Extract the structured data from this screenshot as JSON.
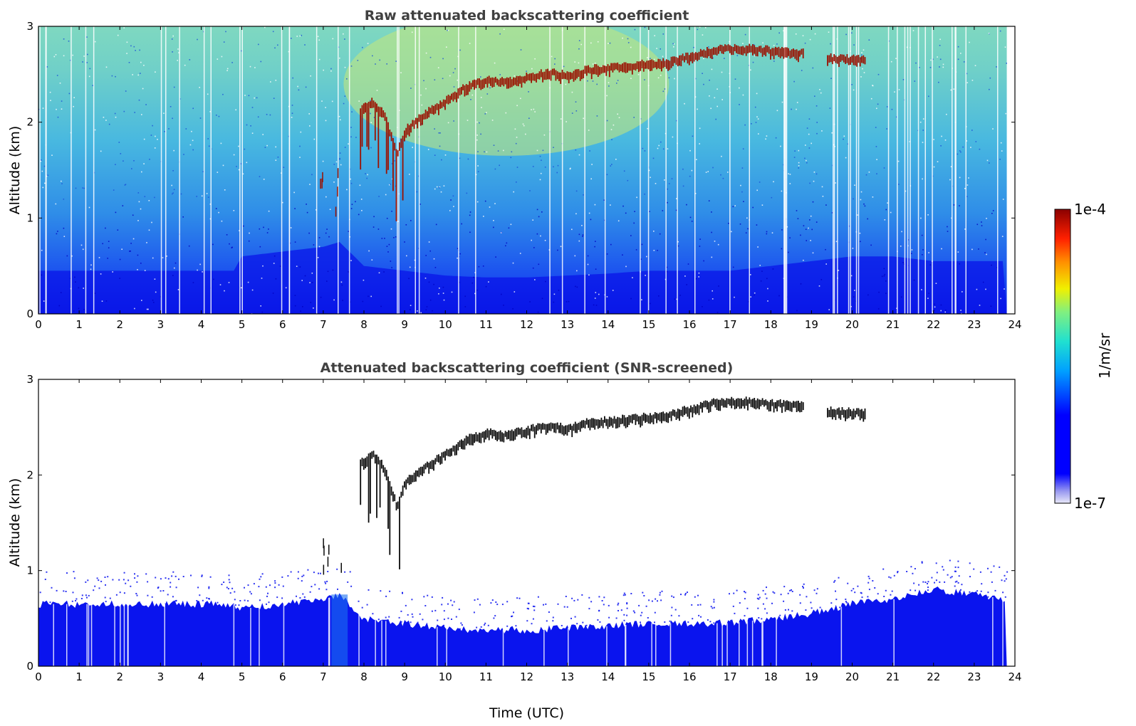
{
  "chart_data": [
    {
      "type": "heatmap",
      "title": "Raw attenuated backscattering coefficient",
      "xlabel": "",
      "ylabel": "Altitude (km)",
      "xlim": [
        0,
        24
      ],
      "ylim": [
        0,
        3
      ],
      "xticks": [
        "0",
        "1",
        "2",
        "3",
        "4",
        "5",
        "6",
        "7",
        "8",
        "9",
        "10",
        "11",
        "12",
        "13",
        "14",
        "15",
        "16",
        "17",
        "18",
        "19",
        "20",
        "21",
        "22",
        "23",
        "24"
      ],
      "yticks": [
        "0",
        "1",
        "2",
        "3"
      ],
      "screened": false,
      "layer_top_km": {
        "x": [
          7.9,
          8.2,
          8.5,
          8.8,
          9.0,
          9.3,
          9.6,
          10.0,
          10.5,
          11.0,
          11.5,
          12.0,
          12.5,
          13.0,
          13.5,
          14.0,
          14.5,
          15.0,
          15.5,
          16.0,
          16.5,
          17.0,
          17.5,
          18.0,
          18.7,
          19.4,
          20.3
        ],
        "y": [
          2.15,
          2.25,
          2.1,
          1.7,
          1.95,
          2.05,
          2.15,
          2.25,
          2.4,
          2.48,
          2.45,
          2.5,
          2.55,
          2.52,
          2.58,
          2.6,
          2.62,
          2.64,
          2.66,
          2.72,
          2.78,
          2.8,
          2.8,
          2.78,
          2.76,
          2.7,
          2.68
        ]
      },
      "layer_thickness_km": 0.1,
      "boundary_layer_top_km": {
        "x": [
          0,
          4.8,
          5.0,
          6.0,
          7.0,
          7.4,
          8.0,
          9.0,
          10.0,
          11.0,
          12.0,
          13.0,
          14.0,
          15.0,
          16.0,
          17.0,
          18.0,
          19.0,
          20.0,
          21.0,
          22.0,
          23.0,
          23.8
        ],
        "y": [
          0.45,
          0.45,
          0.6,
          0.65,
          0.7,
          0.75,
          0.5,
          0.45,
          0.4,
          0.38,
          0.38,
          0.4,
          0.42,
          0.45,
          0.45,
          0.45,
          0.5,
          0.55,
          0.6,
          0.6,
          0.55,
          0.55,
          0.55
        ]
      },
      "data_end_hour": 23.8
    },
    {
      "type": "heatmap",
      "title": "Attenuated backscattering coefficient (SNR-screened)",
      "xlabel": "Time (UTC)",
      "ylabel": "Altitude (km)",
      "xlim": [
        0,
        24
      ],
      "ylim": [
        0,
        3
      ],
      "xticks": [
        "0",
        "1",
        "2",
        "3",
        "4",
        "5",
        "6",
        "7",
        "8",
        "9",
        "10",
        "11",
        "12",
        "13",
        "14",
        "15",
        "16",
        "17",
        "18",
        "19",
        "20",
        "21",
        "22",
        "23",
        "24"
      ],
      "yticks": [
        "0",
        "1",
        "2",
        "3"
      ],
      "screened": true,
      "layer_top_km": {
        "x": [
          7.9,
          8.2,
          8.5,
          8.8,
          9.0,
          9.3,
          9.6,
          10.0,
          10.5,
          11.0,
          11.5,
          12.0,
          12.5,
          13.0,
          13.5,
          14.0,
          14.5,
          15.0,
          15.5,
          16.0,
          16.5,
          17.0,
          17.5,
          18.0,
          18.7,
          19.4,
          20.3
        ],
        "y": [
          2.15,
          2.25,
          2.1,
          1.7,
          1.95,
          2.05,
          2.15,
          2.25,
          2.4,
          2.48,
          2.45,
          2.5,
          2.55,
          2.52,
          2.58,
          2.6,
          2.62,
          2.64,
          2.66,
          2.72,
          2.78,
          2.8,
          2.8,
          2.78,
          2.76,
          2.7,
          2.68
        ]
      },
      "layer_thickness_km": 0.1,
      "boundary_layer_top_km": {
        "x": [
          0,
          4.8,
          5.0,
          6.0,
          7.0,
          7.4,
          8.0,
          9.0,
          10.0,
          11.0,
          12.0,
          13.0,
          14.0,
          15.0,
          16.0,
          17.0,
          18.0,
          19.0,
          20.0,
          21.0,
          22.0,
          23.0,
          23.8
        ],
        "y": [
          0.65,
          0.65,
          0.6,
          0.65,
          0.7,
          0.75,
          0.5,
          0.45,
          0.4,
          0.38,
          0.38,
          0.4,
          0.42,
          0.45,
          0.45,
          0.45,
          0.5,
          0.55,
          0.65,
          0.7,
          0.8,
          0.75,
          0.7
        ]
      },
      "data_end_hour": 23.8
    }
  ],
  "colorbar": {
    "label": "1/m/sr",
    "max_label": "1e-4",
    "min_label": "1e-7",
    "colormap": "jet",
    "range": [
      1e-07,
      0.0001
    ],
    "scale": "log"
  }
}
